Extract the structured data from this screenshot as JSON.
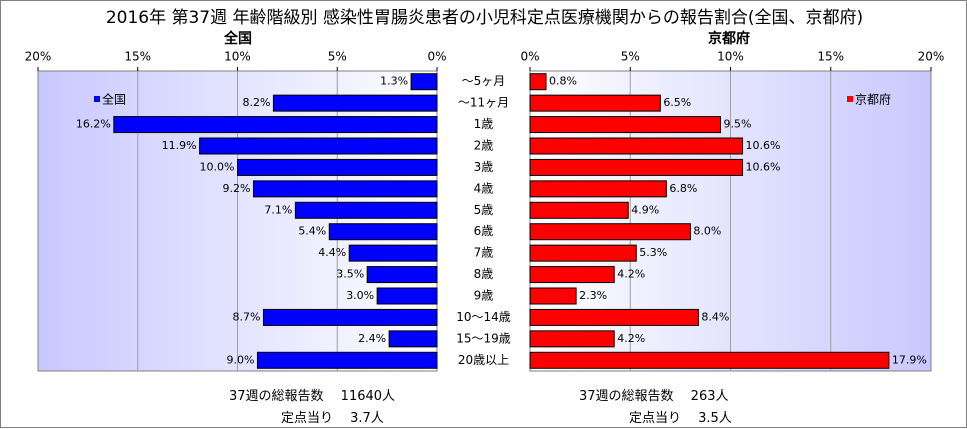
{
  "title": "2016年 第37週 年齢階級別 感染性胃腸炎患者の小児科定点医療機関からの報告割合(全国、京都府)",
  "categories": [
    "〜5ヶ月",
    "〜11ヶ月",
    "1歳",
    "2歳",
    "3歳",
    "4歳",
    "5歳",
    "6歳",
    "7歳",
    "8歳",
    "9歳",
    "10〜14歳",
    "15〜19歳",
    "20歳以上"
  ],
  "colors": {
    "national": "#0000ff",
    "kyoto": "#ff0000",
    "plot_bg_start": "#c8c8ff",
    "plot_bg_end": "#ffffff"
  },
  "chart_data": [
    {
      "type": "bar",
      "orientation": "horizontal",
      "title": "全国",
      "xlim": [
        0,
        20
      ],
      "x_direction": "reversed",
      "tick_labels": [
        "20%",
        "15%",
        "10%",
        "5%",
        "0%"
      ],
      "grid": true,
      "legend_position": "top-left",
      "series": [
        {
          "name": "全国",
          "values": [
            1.3,
            8.2,
            16.2,
            11.9,
            10.0,
            9.2,
            7.1,
            5.4,
            4.4,
            3.5,
            3.0,
            8.7,
            2.4,
            9.0
          ],
          "labels": [
            "1.3%",
            "8.2%",
            "16.2%",
            "11.9%",
            "10.0%",
            "9.2%",
            "7.1%",
            "5.4%",
            "4.4%",
            "3.5%",
            "3.0%",
            "8.7%",
            "2.4%",
            "9.0%"
          ]
        }
      ]
    },
    {
      "type": "bar",
      "orientation": "horizontal",
      "title": "京都府",
      "xlim": [
        0,
        20
      ],
      "tick_labels": [
        "0%",
        "5%",
        "10%",
        "15%",
        "20%"
      ],
      "grid": true,
      "legend_position": "top-right",
      "series": [
        {
          "name": "京都府",
          "values": [
            0.8,
            6.5,
            9.5,
            10.6,
            10.6,
            6.8,
            4.9,
            8.0,
            5.3,
            4.2,
            2.3,
            8.4,
            4.2,
            17.9
          ],
          "labels": [
            "0.8%",
            "6.5%",
            "9.5%",
            "10.6%",
            "10.6%",
            "6.8%",
            "4.9%",
            "8.0%",
            "5.3%",
            "4.2%",
            "2.3%",
            "8.4%",
            "4.2%",
            "17.9%"
          ]
        }
      ]
    }
  ],
  "footer": {
    "national_total": "37週の総報告数　 11640人",
    "national_per_point": "定点当り　 3.7人",
    "kyoto_total": "37週の総報告数　 263人",
    "kyoto_per_point": "定点当り　 3.5人"
  }
}
